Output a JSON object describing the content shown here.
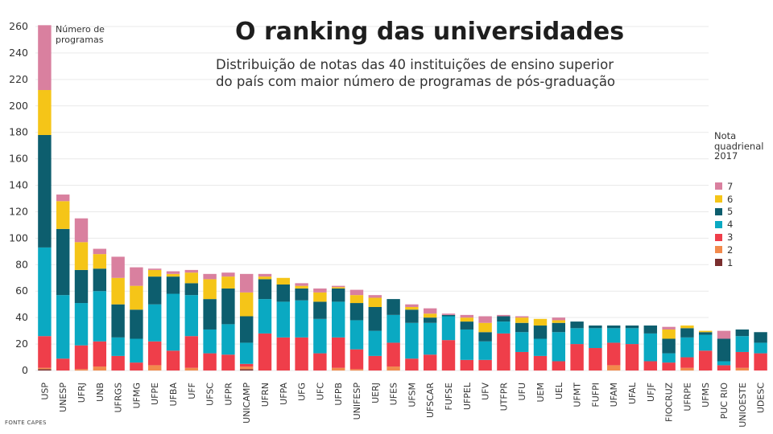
{
  "chart_data": {
    "type": "bar",
    "stacked": true,
    "title": "O ranking das universidades",
    "subtitle_lines": [
      "Distribuição de notas das 40 instituições de ensino superior",
      "do país com maior número de programas de pós-graduação"
    ],
    "ylabel_lines": [
      "Número de",
      "programas"
    ],
    "ylim": [
      0,
      260
    ],
    "yticks": [
      0,
      20,
      40,
      60,
      80,
      100,
      120,
      140,
      160,
      180,
      200,
      220,
      240,
      260
    ],
    "categories": [
      "USP",
      "UNESP",
      "UFRJ",
      "UNB",
      "UFRGS",
      "UFMG",
      "UFPE",
      "UFBA",
      "UFF",
      "UFSC",
      "UFPR",
      "UNICAMP",
      "UFRN",
      "UFPA",
      "UFG",
      "UFC",
      "UFPB",
      "UNIFESP",
      "UERJ",
      "UFES",
      "UFSM",
      "UFSCAR",
      "FUFSE",
      "UFPEL",
      "UFV",
      "UTFPR",
      "UFU",
      "UEM",
      "UEL",
      "UFMT",
      "FUFPI",
      "UFAM",
      "UFAL",
      "UFJF",
      "FIOCRUZ",
      "UFRPE",
      "UFMS",
      "PUC RIO",
      "UNIOESTE",
      "UDESC"
    ],
    "legend_title_lines": [
      "Nota",
      "quadrienal",
      "2017"
    ],
    "series": [
      {
        "name": "1",
        "color": "#7a2e2e",
        "values": [
          1,
          0,
          0,
          0,
          0,
          0,
          0,
          0,
          0,
          0,
          0,
          1,
          0,
          0,
          0,
          0,
          0,
          0,
          0,
          0,
          0,
          0,
          0,
          0,
          0,
          0,
          0,
          0,
          0,
          0,
          0,
          0,
          0,
          0,
          0,
          0,
          0,
          0,
          0,
          0
        ]
      },
      {
        "name": "2",
        "color": "#f28a4c",
        "values": [
          1,
          0,
          1,
          3,
          0,
          0,
          4,
          0,
          2,
          0,
          0,
          2,
          0,
          0,
          0,
          0,
          2,
          1,
          0,
          3,
          0,
          0,
          0,
          0,
          0,
          0,
          0,
          0,
          0,
          0,
          0,
          4,
          0,
          0,
          0,
          2,
          0,
          0,
          2,
          0
        ]
      },
      {
        "name": "3",
        "color": "#ef3e4a",
        "values": [
          24,
          9,
          18,
          19,
          11,
          6,
          18,
          15,
          24,
          13,
          12,
          2,
          28,
          25,
          25,
          13,
          23,
          15,
          11,
          18,
          9,
          12,
          23,
          8,
          8,
          28,
          14,
          11,
          7,
          20,
          17,
          17,
          20,
          7,
          6,
          8,
          15,
          4,
          12,
          13
        ]
      },
      {
        "name": "4",
        "color": "#0aa9c2",
        "values": [
          67,
          48,
          32,
          38,
          14,
          18,
          28,
          43,
          31,
          18,
          23,
          16,
          26,
          27,
          28,
          26,
          27,
          22,
          19,
          21,
          27,
          24,
          18,
          23,
          14,
          9,
          15,
          13,
          22,
          12,
          15,
          11,
          12,
          21,
          7,
          15,
          12,
          3,
          12,
          8
        ]
      },
      {
        "name": "5",
        "color": "#0d5e6e",
        "values": [
          85,
          50,
          25,
          17,
          25,
          22,
          21,
          13,
          9,
          23,
          27,
          20,
          15,
          13,
          9,
          13,
          10,
          13,
          18,
          12,
          10,
          4,
          1,
          6,
          7,
          4,
          7,
          10,
          7,
          5,
          2,
          2,
          2,
          6,
          11,
          7,
          2,
          17,
          5,
          8
        ]
      },
      {
        "name": "6",
        "color": "#f5c518",
        "values": [
          34,
          21,
          21,
          11,
          20,
          18,
          5,
          2,
          8,
          15,
          9,
          18,
          2,
          5,
          2,
          7,
          1,
          6,
          7,
          0,
          2,
          3,
          0,
          3,
          7,
          0,
          4,
          5,
          2,
          0,
          0,
          0,
          0,
          0,
          7,
          2,
          1,
          0,
          0,
          0
        ]
      },
      {
        "name": "7",
        "color": "#d9809f",
        "values": [
          49,
          5,
          18,
          4,
          16,
          14,
          1,
          2,
          2,
          4,
          3,
          14,
          2,
          0,
          2,
          3,
          1,
          4,
          2,
          0,
          2,
          4,
          1,
          2,
          5,
          1,
          1,
          0,
          2,
          0,
          0,
          0,
          0,
          0,
          2,
          0,
          0,
          6,
          0,
          0
        ]
      }
    ],
    "source": "FONTE CAPES"
  }
}
